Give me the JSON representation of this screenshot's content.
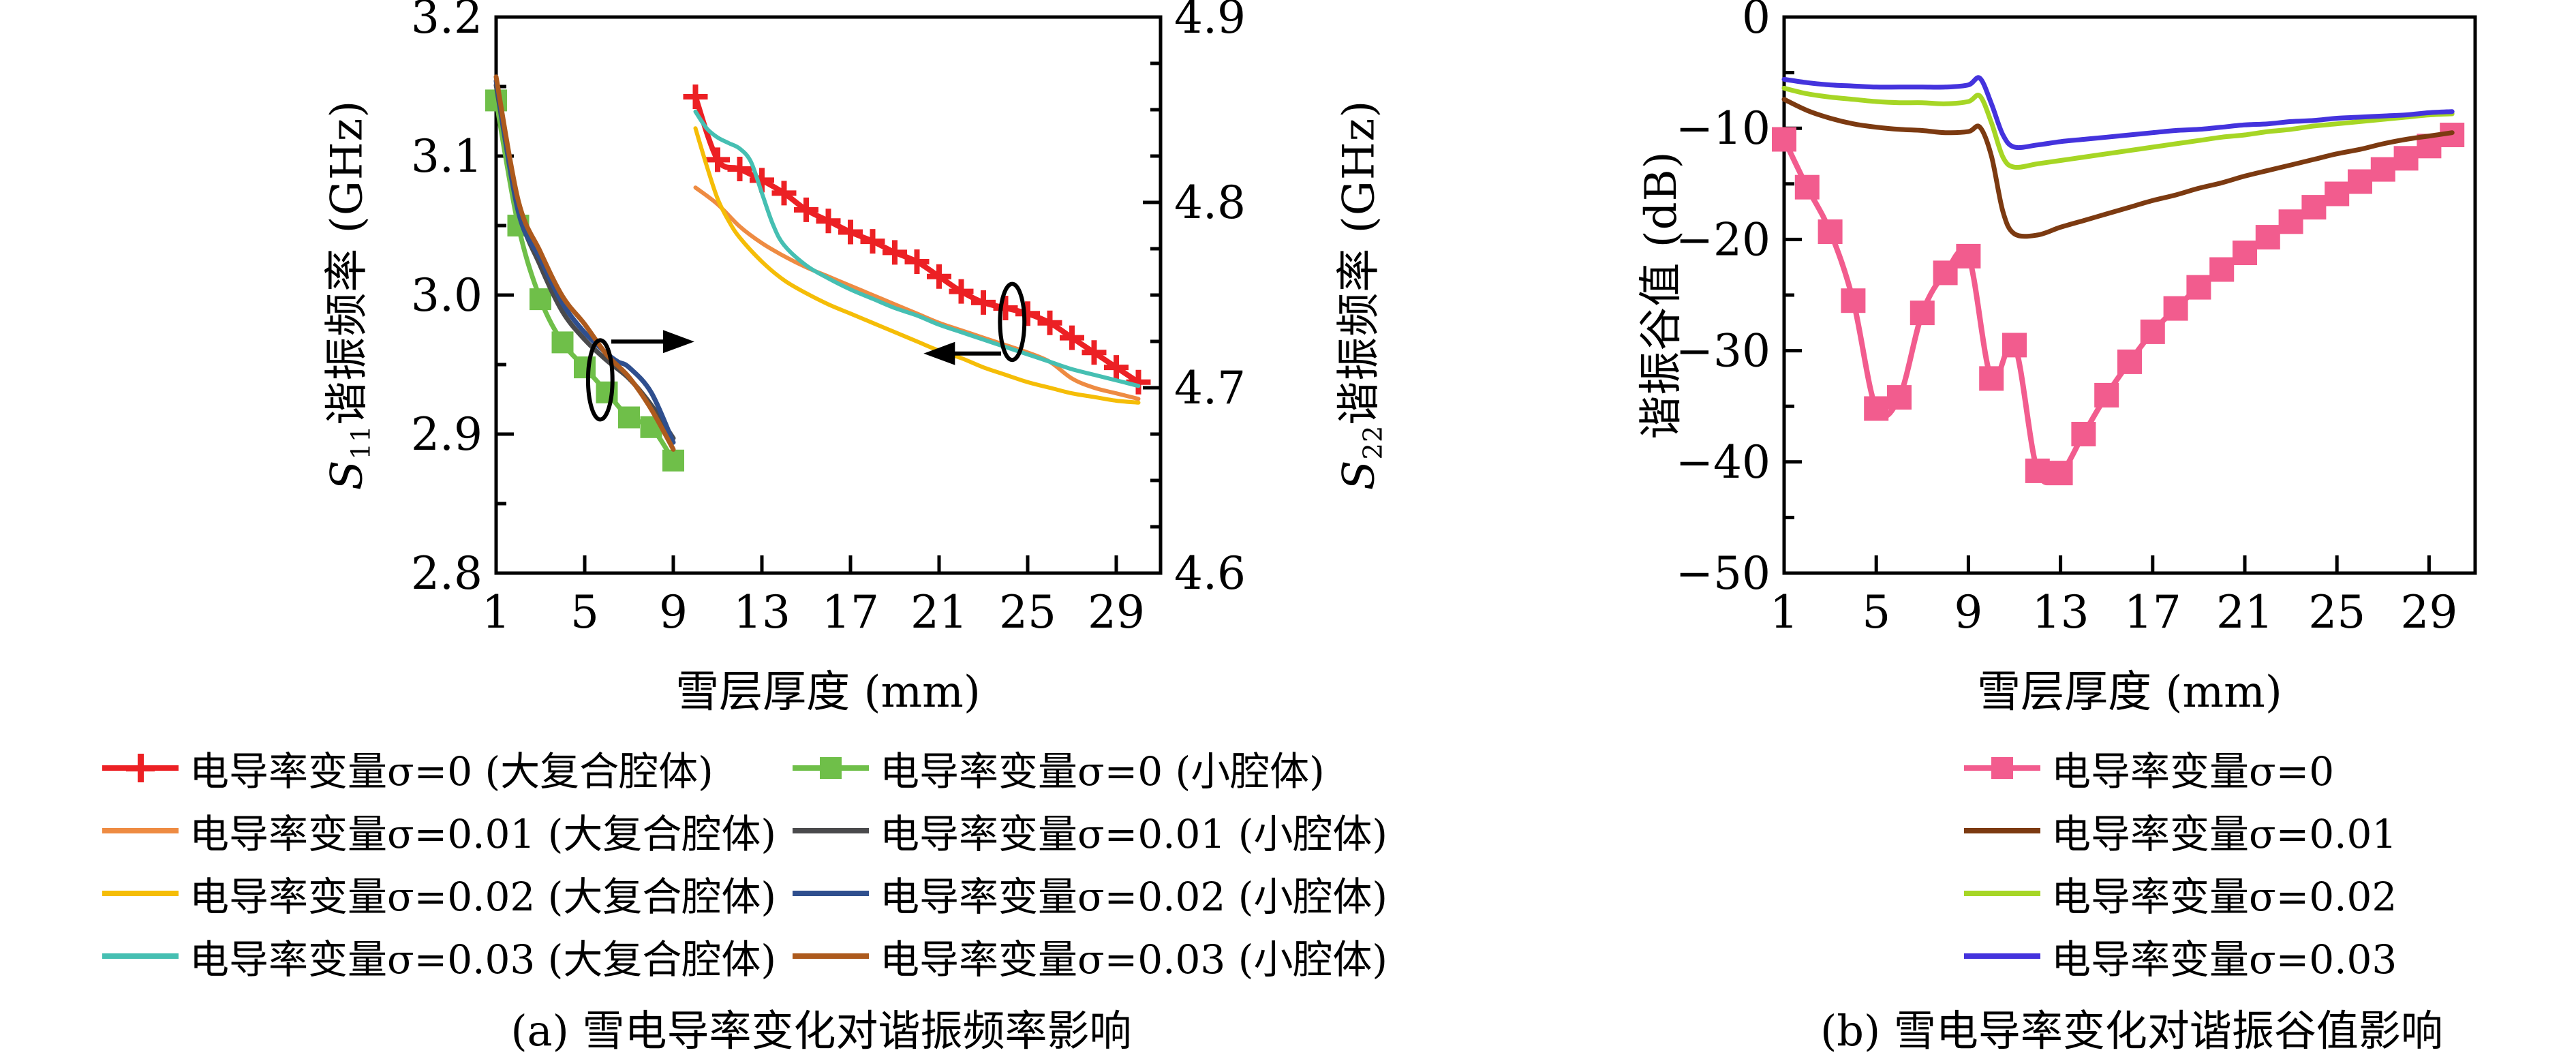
{
  "figure": {
    "caption_a": "(a) 雪电导率变化对谐振频率影响",
    "caption_b": "(b) 雪电导率变化对谐振谷值影响"
  },
  "chart_data": [
    {
      "type": "line",
      "title": "",
      "xlabel": "雪层厚度 (mm)",
      "xlim": [
        1,
        31
      ],
      "x_ticks": [
        {
          "v": 1,
          "label": "1"
        },
        {
          "v": 5,
          "label": "5"
        },
        {
          "v": 9,
          "label": "9"
        },
        {
          "v": 13,
          "label": "13"
        },
        {
          "v": 17,
          "label": "17"
        },
        {
          "v": 21,
          "label": "21"
        },
        {
          "v": 25,
          "label": "25"
        },
        {
          "v": 29,
          "label": "29"
        }
      ],
      "legend_position": "below",
      "axes": {
        "left": {
          "label": {
            "var": "S",
            "sub": "11",
            "rest": "谐振频率 (GHz)"
          },
          "lim": [
            2.8,
            3.2
          ],
          "ticks": [
            {
              "v": 3.2,
              "label": "3.2"
            },
            {
              "v": 3.1,
              "label": "3.1"
            },
            {
              "v": 3.0,
              "label": "3.0"
            },
            {
              "v": 2.9,
              "label": "2.9"
            },
            {
              "v": 2.8,
              "label": "2.8"
            }
          ],
          "minor": [
            3.15,
            3.05,
            2.95,
            2.85
          ]
        },
        "right": {
          "label": {
            "var": "S",
            "sub": "22",
            "rest": "谐振频率 (GHz)"
          },
          "lim": [
            4.6,
            4.9
          ],
          "ticks": [
            {
              "v": 4.9,
              "label": "4.9"
            },
            {
              "v": 4.8,
              "label": "4.8"
            },
            {
              "v": 4.7,
              "label": "4.7"
            },
            {
              "v": 4.6,
              "label": "4.6"
            }
          ],
          "minor": [
            4.875,
            4.85,
            4.825,
            4.775,
            4.75,
            4.725,
            4.675,
            4.65,
            4.625
          ]
        }
      },
      "series": [
        {
          "name": "电导率变量σ=0 (大复合腔体)",
          "color": "#ec2024",
          "axis": "right",
          "marker": "plus",
          "ms": 18,
          "lw": 8,
          "x": [
            10,
            11,
            12,
            13,
            14,
            15,
            16,
            17,
            18,
            19,
            20,
            21,
            22,
            23,
            24,
            25,
            26,
            27,
            28,
            29,
            30
          ],
          "y": [
            4.857,
            4.823,
            4.818,
            4.812,
            4.805,
            4.796,
            4.79,
            4.784,
            4.779,
            4.773,
            4.768,
            4.76,
            4.752,
            4.746,
            4.743,
            4.74,
            4.735,
            4.727,
            4.719,
            4.711,
            4.703
          ]
        },
        {
          "name": "电导率变量σ=0.01 (大复合腔体)",
          "color": "#ee8b42",
          "axis": "right",
          "marker": null,
          "lw": 6,
          "x": [
            10,
            11,
            12,
            13,
            14,
            15,
            16,
            17,
            18,
            19,
            20,
            21,
            22,
            23,
            24,
            25,
            26,
            27,
            28,
            29,
            30
          ],
          "y": [
            4.808,
            4.799,
            4.787,
            4.778,
            4.771,
            4.765,
            4.76,
            4.755,
            4.75,
            4.745,
            4.74,
            4.735,
            4.731,
            4.727,
            4.723,
            4.719,
            4.714,
            4.705,
            4.7,
            4.697,
            4.694
          ]
        },
        {
          "name": "电导率变量σ=0.02 (大复合腔体)",
          "color": "#f5bd07",
          "axis": "right",
          "marker": null,
          "lw": 6,
          "x": [
            10,
            10.5,
            11,
            11.5,
            12,
            13,
            14,
            15,
            16,
            17,
            18,
            19,
            20,
            21,
            22,
            23,
            24,
            25,
            26,
            27,
            28,
            29,
            30
          ],
          "y": [
            4.84,
            4.82,
            4.802,
            4.79,
            4.781,
            4.768,
            4.758,
            4.751,
            4.745,
            4.74,
            4.735,
            4.73,
            4.725,
            4.72,
            4.716,
            4.711,
            4.707,
            4.703,
            4.7,
            4.697,
            4.695,
            4.693,
            4.692
          ]
        },
        {
          "name": "电导率变量σ=0.03 (大复合腔体)",
          "color": "#46bfb2",
          "axis": "right",
          "marker": null,
          "lw": 6,
          "x": [
            10,
            10.5,
            11,
            11.5,
            12,
            12.5,
            13,
            13.5,
            14,
            15,
            16,
            17,
            18,
            19,
            20,
            21,
            22,
            23,
            24,
            25,
            26,
            27,
            28,
            29,
            30
          ],
          "y": [
            4.849,
            4.84,
            4.835,
            4.832,
            4.829,
            4.822,
            4.805,
            4.788,
            4.777,
            4.766,
            4.759,
            4.753,
            4.748,
            4.743,
            4.739,
            4.734,
            4.73,
            4.726,
            4.722,
            4.718,
            4.714,
            4.71,
            4.707,
            4.704,
            4.701
          ]
        },
        {
          "name": "电导率变量σ=0 (小腔体)",
          "color": "#6fbf49",
          "axis": "left",
          "marker": "square",
          "ms": 32,
          "lw": 7,
          "x": [
            1,
            2,
            3,
            4,
            5,
            6,
            7,
            8,
            9
          ],
          "y": [
            3.14,
            3.05,
            2.997,
            2.966,
            2.948,
            2.93,
            2.912,
            2.905,
            2.881
          ]
        },
        {
          "name": "电导率变量σ=0.01 (小腔体)",
          "color": "#4a4a4c",
          "axis": "left",
          "marker": null,
          "lw": 7,
          "x": [
            1,
            2,
            3,
            4,
            5,
            6,
            7,
            8,
            9
          ],
          "y": [
            3.151,
            3.062,
            3.021,
            2.988,
            2.968,
            2.953,
            2.94,
            2.921,
            2.897
          ]
        },
        {
          "name": "电导率变量σ=0.02 (小腔体)",
          "color": "#2f4f8e",
          "axis": "left",
          "marker": null,
          "lw": 7,
          "x": [
            1,
            2,
            3,
            4,
            5,
            6,
            6.5,
            7,
            8,
            9
          ],
          "y": [
            3.154,
            3.06,
            3.026,
            2.994,
            2.973,
            2.958,
            2.952,
            2.948,
            2.93,
            2.894
          ]
        },
        {
          "name": "电导率变量σ=0.03 (小腔体)",
          "color": "#ad5a1d",
          "axis": "left",
          "marker": null,
          "lw": 7,
          "x": [
            1,
            2,
            3,
            4,
            5,
            6,
            7,
            8,
            9
          ],
          "y": [
            3.157,
            3.068,
            3.031,
            2.999,
            2.979,
            2.957,
            2.941,
            2.918,
            2.889
          ]
        }
      ],
      "annotations": [
        {
          "type": "ellipse",
          "axis": "left",
          "cx": 5.7,
          "cy": 2.939,
          "rx": 0.55,
          "ry": 0.0285
        },
        {
          "type": "arrow",
          "axis": "left",
          "x1": 6.2,
          "y1": 2.9665,
          "x2": 9.95,
          "y2": 2.9665
        },
        {
          "type": "ellipse",
          "axis": "right",
          "cx": 24.3,
          "cy": 4.7355,
          "rx": 0.55,
          "ry": 0.0205
        },
        {
          "type": "arrow",
          "axis": "right",
          "x1": 23.8,
          "y1": 4.7185,
          "x2": 20.3,
          "y2": 4.7185
        }
      ]
    },
    {
      "type": "line",
      "title": "",
      "xlabel": "雪层厚度 (mm)",
      "xlim": [
        1,
        31
      ],
      "x_ticks": [
        {
          "v": 1,
          "label": "1"
        },
        {
          "v": 5,
          "label": "5"
        },
        {
          "v": 9,
          "label": "9"
        },
        {
          "v": 13,
          "label": "13"
        },
        {
          "v": 17,
          "label": "17"
        },
        {
          "v": 21,
          "label": "21"
        },
        {
          "v": 25,
          "label": "25"
        },
        {
          "v": 29,
          "label": "29"
        }
      ],
      "legend_position": "below",
      "axes": {
        "left": {
          "label": "谐振谷值 (dB)",
          "lim": [
            -50,
            0
          ],
          "ticks": [
            {
              "v": 0,
              "label": "0"
            },
            {
              "v": -10,
              "label": "−10"
            },
            {
              "v": -20,
              "label": "−20"
            },
            {
              "v": -30,
              "label": "−30"
            },
            {
              "v": -40,
              "label": "−40"
            },
            {
              "v": -50,
              "label": "−50"
            }
          ],
          "minor": [
            -5,
            -15,
            -25,
            -35,
            -45
          ]
        }
      },
      "series": [
        {
          "name": "电导率变量σ=0",
          "color": "#f25c8e",
          "axis": "left",
          "marker": "square",
          "ms": 36,
          "lw": 8,
          "x": [
            1,
            2,
            3,
            4,
            5,
            6,
            7,
            8,
            9,
            10,
            11,
            12,
            13,
            14,
            15,
            16,
            17,
            18,
            19,
            20,
            21,
            22,
            23,
            24,
            25,
            26,
            27,
            28,
            29,
            30
          ],
          "y": [
            -11.0,
            -15.3,
            -19.3,
            -25.5,
            -35.2,
            -34.2,
            -26.6,
            -23.0,
            -21.5,
            -32.5,
            -29.5,
            -40.8,
            -41.0,
            -37.5,
            -34.0,
            -31.0,
            -28.3,
            -26.2,
            -24.3,
            -22.7,
            -21.2,
            -19.8,
            -18.4,
            -17.1,
            -15.9,
            -14.8,
            -13.7,
            -12.7,
            -11.6,
            -10.6
          ]
        },
        {
          "name": "电导率变量σ=0.01",
          "color": "#7c3a11",
          "axis": "left",
          "marker": null,
          "lw": 7,
          "x": [
            1,
            2,
            3,
            4,
            5,
            6,
            7,
            8,
            9,
            9.5,
            10,
            10.5,
            11,
            12,
            13,
            14,
            15,
            16,
            17,
            18,
            19,
            20,
            21,
            22,
            23,
            24,
            25,
            26,
            27,
            28,
            29,
            30
          ],
          "y": [
            -7.4,
            -8.4,
            -9.1,
            -9.6,
            -9.9,
            -10.1,
            -10.2,
            -10.4,
            -10.3,
            -9.9,
            -12.5,
            -17.5,
            -19.5,
            -19.6,
            -18.9,
            -18.3,
            -17.7,
            -17.1,
            -16.5,
            -16.0,
            -15.4,
            -14.9,
            -14.3,
            -13.8,
            -13.3,
            -12.8,
            -12.3,
            -11.9,
            -11.4,
            -11.0,
            -10.7,
            -10.4
          ]
        },
        {
          "name": "电导率变量σ=0.02",
          "color": "#a6d625",
          "axis": "left",
          "marker": null,
          "lw": 7,
          "x": [
            1,
            2,
            3,
            4,
            5,
            6,
            7,
            8,
            9,
            9.5,
            10,
            10.5,
            11,
            12,
            13,
            14,
            15,
            16,
            17,
            18,
            19,
            20,
            21,
            22,
            23,
            24,
            25,
            26,
            27,
            28,
            29,
            30
          ],
          "y": [
            -6.4,
            -6.9,
            -7.2,
            -7.4,
            -7.6,
            -7.7,
            -7.7,
            -7.8,
            -7.6,
            -7.1,
            -9.5,
            -12.6,
            -13.5,
            -13.2,
            -12.9,
            -12.6,
            -12.3,
            -12.0,
            -11.7,
            -11.4,
            -11.1,
            -10.8,
            -10.6,
            -10.3,
            -10.1,
            -9.8,
            -9.6,
            -9.4,
            -9.2,
            -9.0,
            -8.8,
            -8.7
          ]
        },
        {
          "name": "电导率变量σ=0.03",
          "color": "#4433dd",
          "axis": "left",
          "marker": null,
          "lw": 7,
          "x": [
            1,
            2,
            3,
            4,
            5,
            6,
            7,
            8,
            9,
            9.5,
            10,
            10.5,
            11,
            12,
            13,
            14,
            15,
            16,
            17,
            18,
            19,
            20,
            21,
            22,
            23,
            24,
            25,
            26,
            27,
            28,
            29,
            30
          ],
          "y": [
            -5.6,
            -5.9,
            -6.1,
            -6.2,
            -6.3,
            -6.3,
            -6.3,
            -6.3,
            -6.1,
            -5.5,
            -7.8,
            -10.6,
            -11.7,
            -11.5,
            -11.2,
            -11.0,
            -10.8,
            -10.6,
            -10.4,
            -10.2,
            -10.1,
            -9.9,
            -9.7,
            -9.6,
            -9.4,
            -9.3,
            -9.1,
            -9.0,
            -8.9,
            -8.8,
            -8.6,
            -8.5
          ]
        }
      ],
      "annotations": []
    }
  ]
}
